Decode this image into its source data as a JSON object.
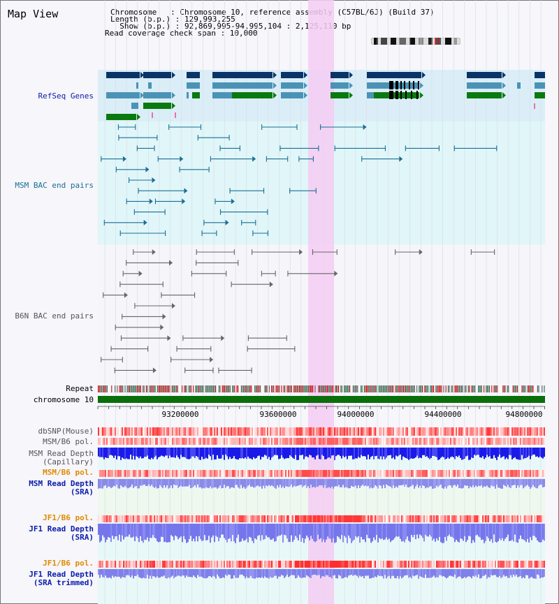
{
  "header": {
    "title": "Map View",
    "chromosome_line": "Chromosome   : Chromosome 10, reference assembly (C57BL/6J) (Build 37)",
    "length_line": "Length (b.p.) : 129,993,255",
    "show_line": "  Show (b.p.) : 92,869,995-94,995,104 : 2,125,110 bp",
    "coverage_line": "Read coverage check span : 10,000"
  },
  "axis": {
    "ticks": [
      "93200000",
      "93600000",
      "94000000",
      "94400000",
      "94800000"
    ]
  },
  "tracks": {
    "refseq": "RefSeq Genes",
    "msm_bac": "MSM BAC end pairs",
    "b6n_bac": "B6N BAC end pairs",
    "repeat": "Repeat",
    "chromosome": "chromosome 10",
    "dbsnp": "dbSNP(Mouse)",
    "msm_b6_pol_1": "MSM/B6 pol.",
    "msm_depth_cap_1": "MSM Read Depth",
    "msm_depth_cap_2": "(Capillary)",
    "msm_b6_pol_2": "MSM/B6 pol.",
    "msm_depth_sra_1": "MSM Read Depth",
    "msm_depth_sra_2": "(SRA)",
    "jf1_pol_1": "JF1/B6 pol.",
    "jf1_depth_1": "JF1 Read Depth",
    "jf1_depth_2": "(SRA)",
    "jf1_pol_2": "JF1/B6 pol.",
    "jf1_trim_1": "JF1 Read Depth",
    "jf1_trim_2": "(SRA trimmed)"
  },
  "colors": {
    "highlight": "#f6d2f4",
    "refseq_bg": "#dbeef8",
    "msm_bg": "#e0f6f8",
    "gene_dark": "#0a3468",
    "gene_mid": "#4a93b6",
    "gene_green": "#0a7a10",
    "msm_line": "#1a6e96",
    "b6n_line": "#666666",
    "chromosome_bar": "#0a6e0a",
    "label_blue": "#0b1ca8",
    "label_orange": "#e08a00",
    "label_teal": "#1a6e96",
    "label_grey": "#555555"
  }
}
